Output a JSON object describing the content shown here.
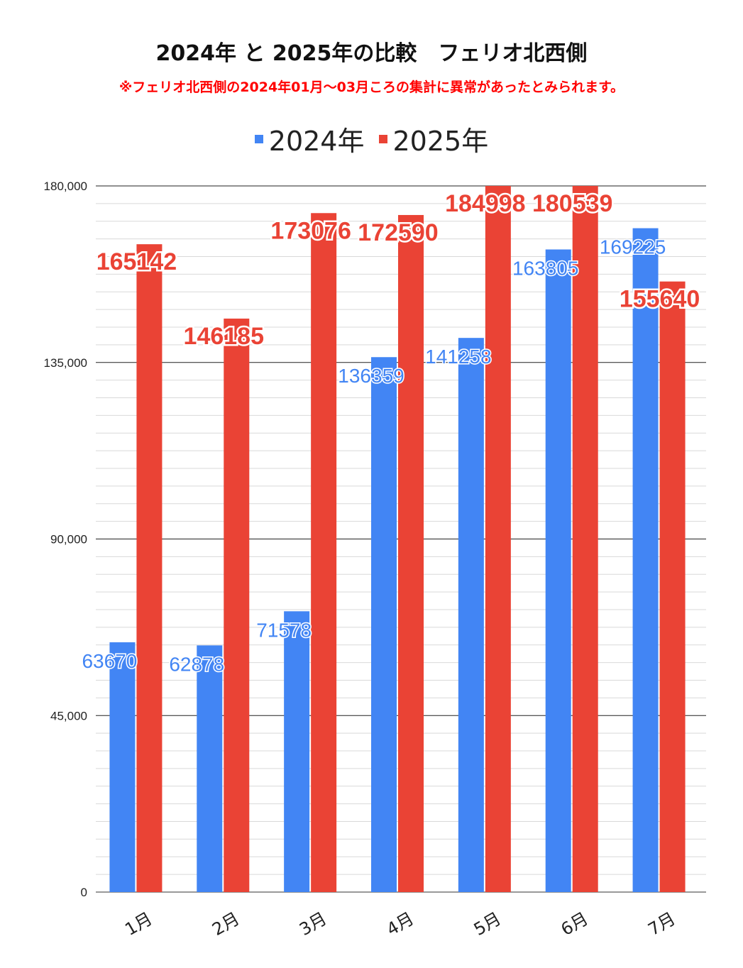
{
  "title": "2024年 と 2025年の比較　フェリオ北西側",
  "subtitle": "※フェリオ北西側の2024年01月～03月ころの集計に異常があったとみられます。",
  "chart_data": {
    "type": "bar",
    "categories": [
      "1月",
      "2月",
      "3月",
      "4月",
      "5月",
      "6月",
      "7月"
    ],
    "series": [
      {
        "name": "2024年",
        "color": "#4285f4",
        "values": [
          63670,
          62878,
          71578,
          136359,
          141258,
          163805,
          169225
        ]
      },
      {
        "name": "2025年",
        "color": "#ea4335",
        "values": [
          165142,
          146185,
          173076,
          172590,
          184998,
          180539,
          155640
        ]
      }
    ],
    "ylim": [
      0,
      180000
    ],
    "yticks": [
      "0",
      "45,000",
      "90,000",
      "135,000",
      "180,000"
    ],
    "grid": true,
    "legend": "top-center",
    "data_labels": true
  }
}
